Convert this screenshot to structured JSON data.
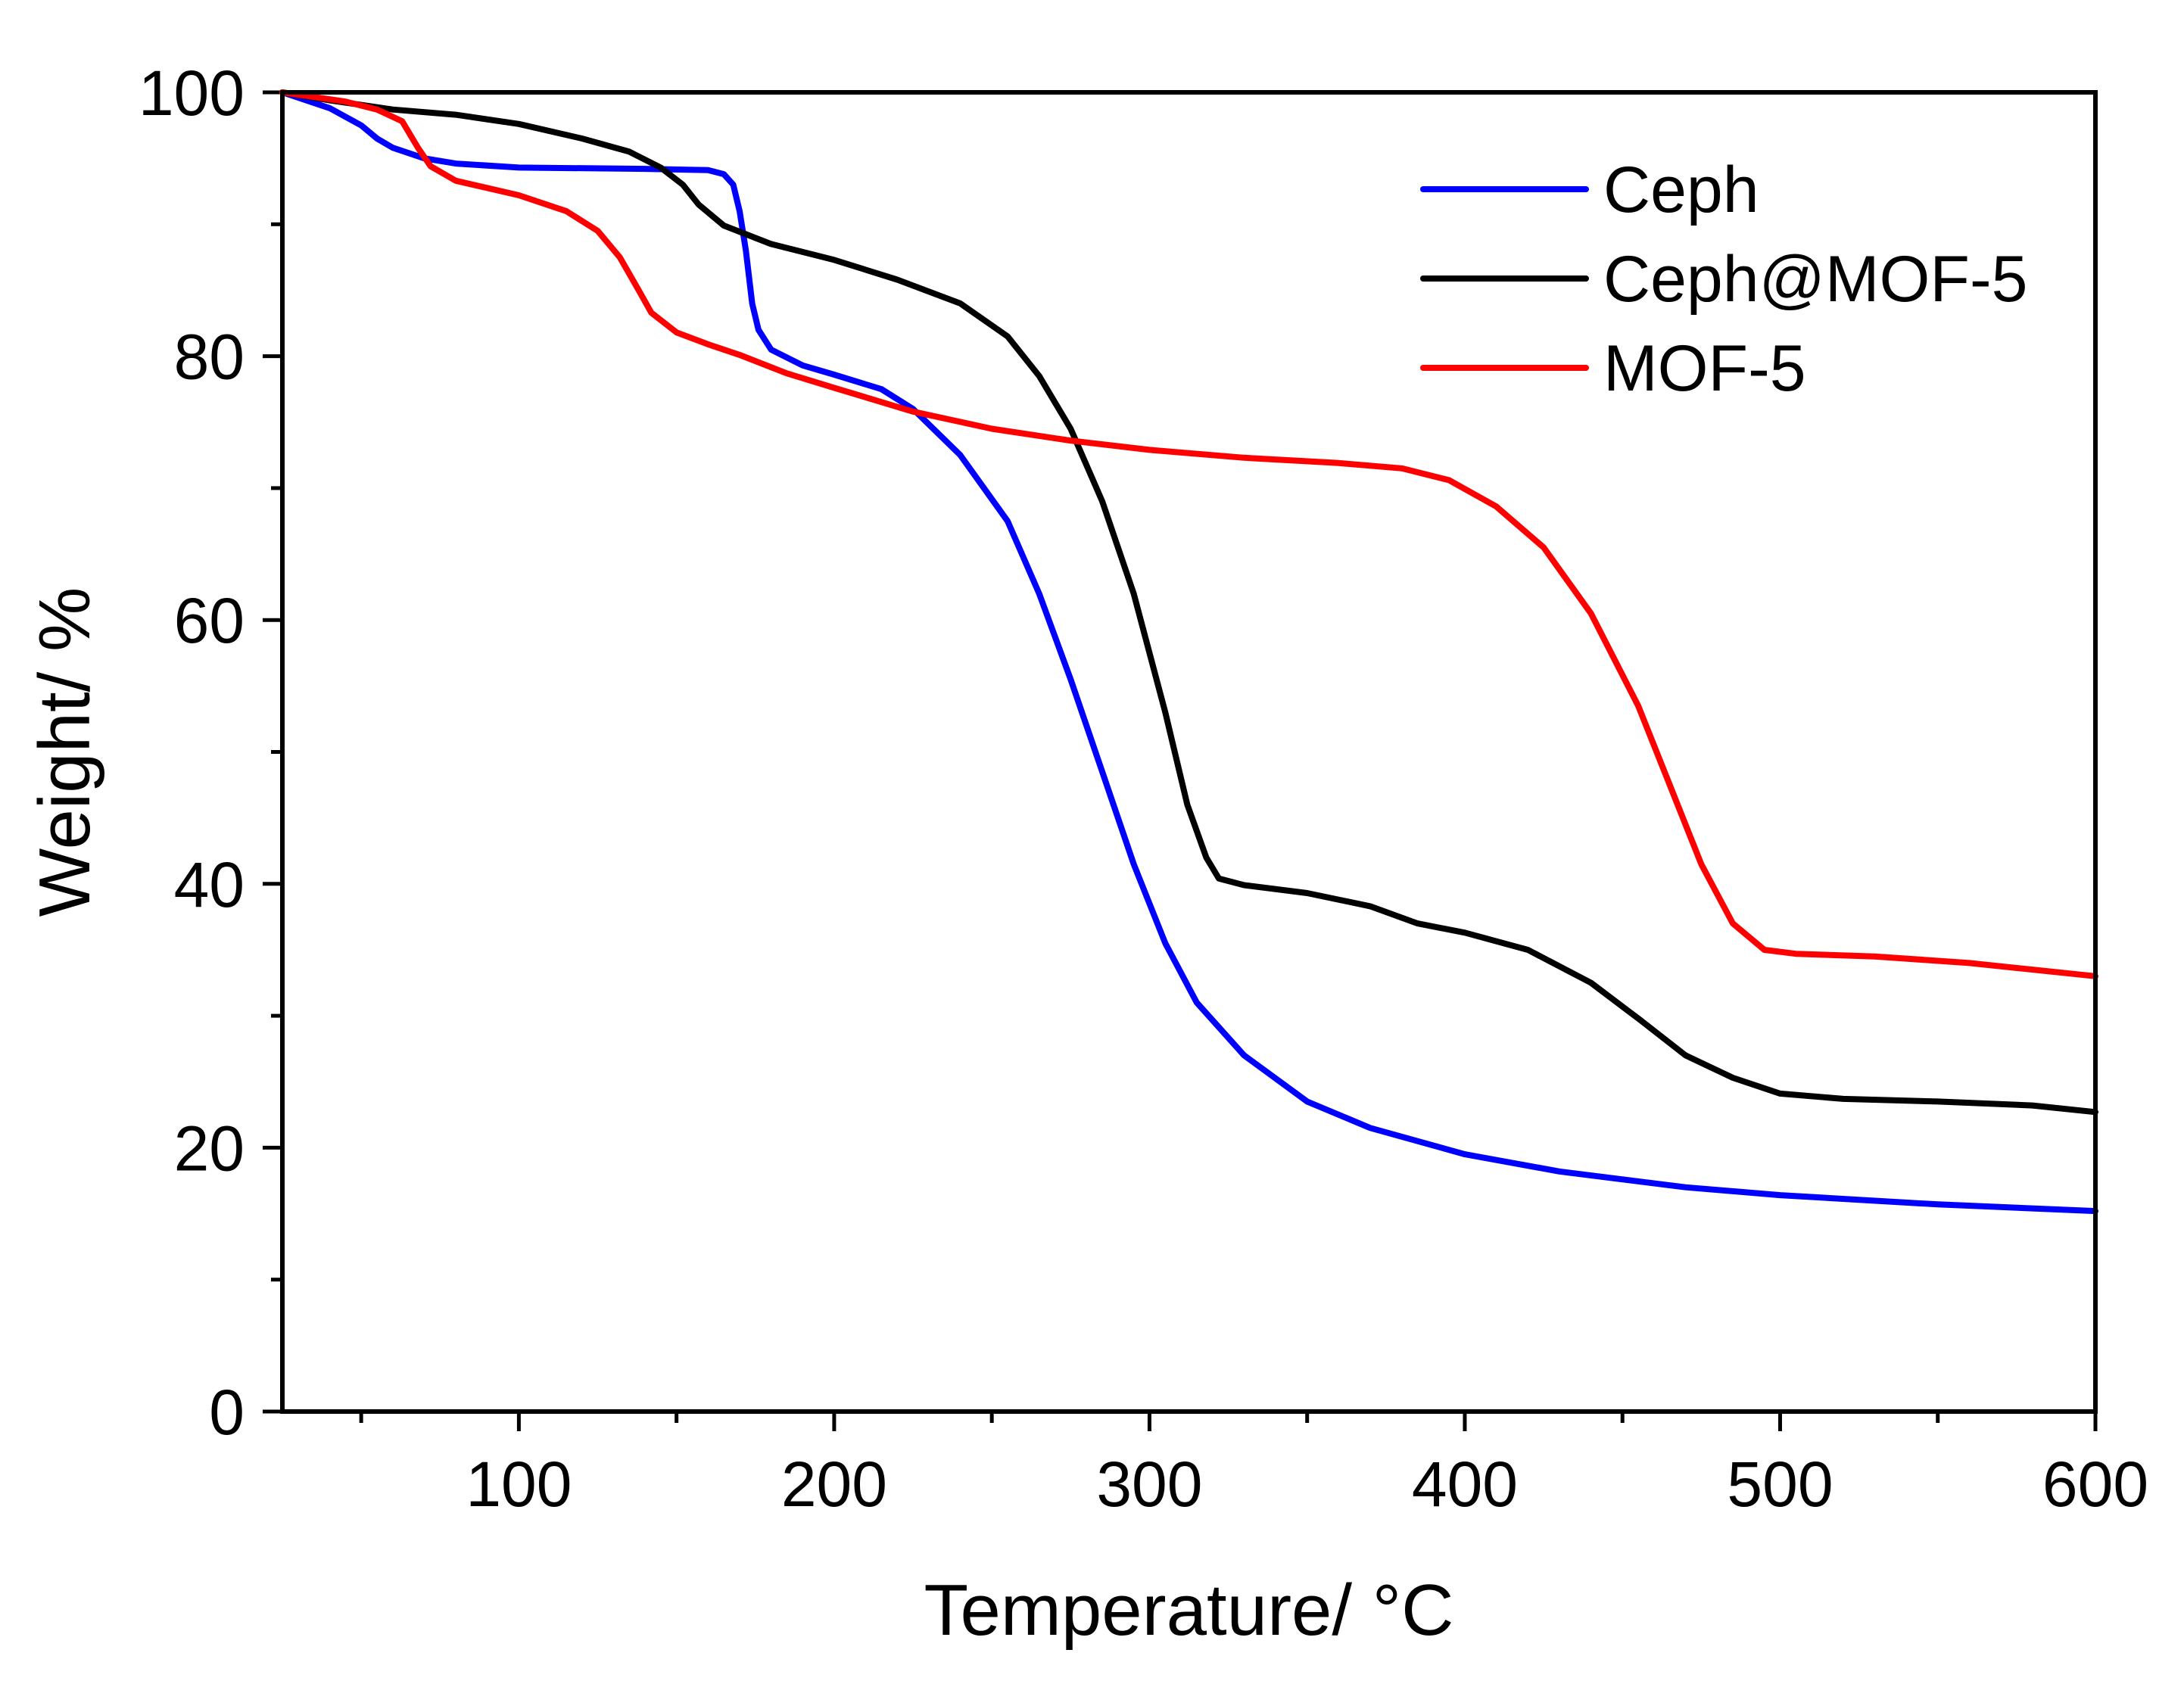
{
  "chart_data": {
    "type": "line",
    "title": "",
    "xlabel": "Temperature/ °C",
    "ylabel": "Weight/ %",
    "xlim": [
      25,
      600
    ],
    "ylim": [
      0,
      100
    ],
    "x_ticks": [
      100,
      200,
      300,
      400,
      500,
      600
    ],
    "x_tick_labels": [
      "100",
      "200",
      "300",
      "400",
      "500",
      "600"
    ],
    "x_minor_ticks": [
      50,
      150,
      250,
      350,
      450,
      550
    ],
    "y_ticks": [
      0,
      20,
      40,
      60,
      80,
      100
    ],
    "y_tick_labels": [
      "0",
      "20",
      "40",
      "60",
      "80",
      "100"
    ],
    "y_minor_ticks": [
      10,
      30,
      50,
      70,
      90
    ],
    "grid": false,
    "legend_position": "top-right",
    "series": [
      {
        "name": "Ceph",
        "color": "#0000ff",
        "points": [
          [
            25,
            100
          ],
          [
            40,
            98.8
          ],
          [
            50,
            97.5
          ],
          [
            55,
            96.5
          ],
          [
            60,
            95.8
          ],
          [
            70,
            95.0
          ],
          [
            80,
            94.6
          ],
          [
            100,
            94.3
          ],
          [
            140,
            94.2
          ],
          [
            160,
            94.1
          ],
          [
            165,
            93.8
          ],
          [
            168,
            93.0
          ],
          [
            170,
            91.0
          ],
          [
            172,
            88.0
          ],
          [
            174,
            84.0
          ],
          [
            176,
            82.0
          ],
          [
            180,
            80.5
          ],
          [
            190,
            79.3
          ],
          [
            200,
            78.6
          ],
          [
            215,
            77.5
          ],
          [
            225,
            76.0
          ],
          [
            240,
            72.5
          ],
          [
            255,
            67.5
          ],
          [
            265,
            62.0
          ],
          [
            275,
            55.5
          ],
          [
            285,
            48.5
          ],
          [
            295,
            41.5
          ],
          [
            305,
            35.5
          ],
          [
            315,
            31.0
          ],
          [
            330,
            27.0
          ],
          [
            350,
            23.5
          ],
          [
            370,
            21.5
          ],
          [
            400,
            19.5
          ],
          [
            430,
            18.2
          ],
          [
            470,
            17.0
          ],
          [
            500,
            16.4
          ],
          [
            550,
            15.7
          ],
          [
            600,
            15.2
          ]
        ]
      },
      {
        "name": "Ceph@MOF-5",
        "color": "#000000",
        "points": [
          [
            25,
            100
          ],
          [
            40,
            99.4
          ],
          [
            60,
            98.7
          ],
          [
            80,
            98.3
          ],
          [
            100,
            97.6
          ],
          [
            120,
            96.5
          ],
          [
            135,
            95.5
          ],
          [
            145,
            94.3
          ],
          [
            152,
            93.0
          ],
          [
            157,
            91.5
          ],
          [
            165,
            89.9
          ],
          [
            180,
            88.5
          ],
          [
            200,
            87.3
          ],
          [
            220,
            85.8
          ],
          [
            240,
            84.0
          ],
          [
            255,
            81.5
          ],
          [
            265,
            78.5
          ],
          [
            275,
            74.5
          ],
          [
            285,
            69.0
          ],
          [
            295,
            62.0
          ],
          [
            305,
            53.0
          ],
          [
            312,
            46.0
          ],
          [
            318,
            42.0
          ],
          [
            322,
            40.4
          ],
          [
            330,
            39.9
          ],
          [
            350,
            39.3
          ],
          [
            370,
            38.3
          ],
          [
            385,
            37.0
          ],
          [
            400,
            36.3
          ],
          [
            420,
            35.0
          ],
          [
            440,
            32.5
          ],
          [
            455,
            29.8
          ],
          [
            470,
            27.0
          ],
          [
            485,
            25.3
          ],
          [
            500,
            24.1
          ],
          [
            520,
            23.7
          ],
          [
            550,
            23.5
          ],
          [
            580,
            23.2
          ],
          [
            600,
            22.7
          ]
        ]
      },
      {
        "name": "MOF-5",
        "color": "#ff0000",
        "points": [
          [
            25,
            100
          ],
          [
            45,
            99.3
          ],
          [
            55,
            98.7
          ],
          [
            63,
            97.8
          ],
          [
            68,
            95.8
          ],
          [
            72,
            94.4
          ],
          [
            80,
            93.3
          ],
          [
            100,
            92.2
          ],
          [
            115,
            91.0
          ],
          [
            125,
            89.5
          ],
          [
            132,
            87.5
          ],
          [
            138,
            85.0
          ],
          [
            142,
            83.3
          ],
          [
            150,
            81.8
          ],
          [
            160,
            80.9
          ],
          [
            170,
            80.1
          ],
          [
            185,
            78.7
          ],
          [
            200,
            77.6
          ],
          [
            225,
            75.8
          ],
          [
            250,
            74.5
          ],
          [
            275,
            73.6
          ],
          [
            300,
            72.9
          ],
          [
            330,
            72.3
          ],
          [
            360,
            71.9
          ],
          [
            380,
            71.5
          ],
          [
            395,
            70.6
          ],
          [
            410,
            68.6
          ],
          [
            425,
            65.5
          ],
          [
            440,
            60.5
          ],
          [
            455,
            53.5
          ],
          [
            465,
            47.5
          ],
          [
            475,
            41.5
          ],
          [
            485,
            37.0
          ],
          [
            495,
            35.0
          ],
          [
            505,
            34.7
          ],
          [
            530,
            34.5
          ],
          [
            560,
            34.0
          ],
          [
            600,
            33.0
          ]
        ]
      }
    ]
  }
}
